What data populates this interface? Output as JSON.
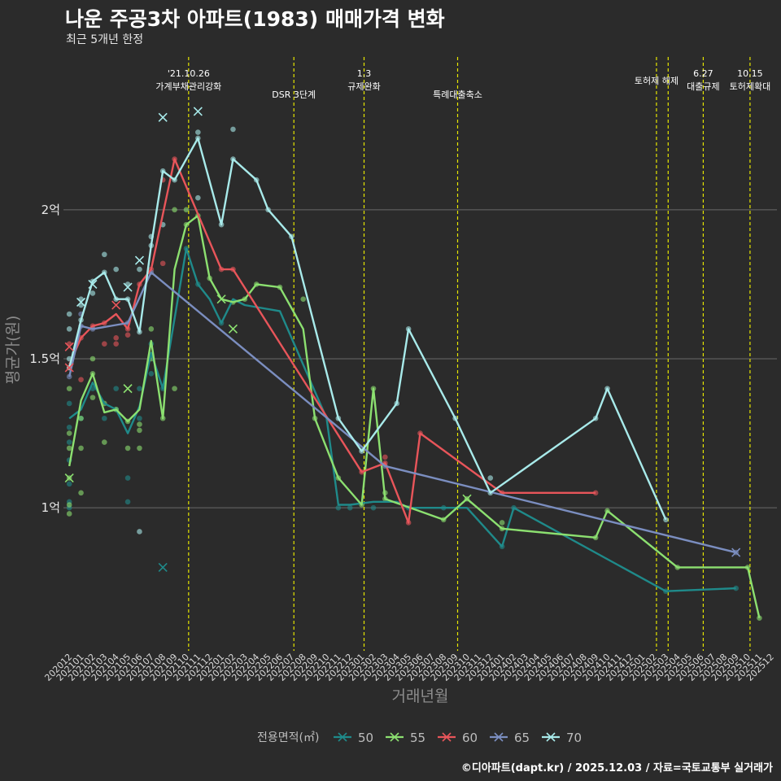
{
  "title": "나운 주공3차 아파트(1983) 매매가격 변화",
  "subtitle": "최근 5개년 한정",
  "caption": "©디아파트(dapt.kr) / 2025.12.03 / 자료=국토교통부 실거래가",
  "chart_data": {
    "type": "line",
    "xlabel": "거래년월",
    "ylabel": "평균가(원)",
    "ylim": [
      0.52,
      2.54
    ],
    "y_unit": "억",
    "yticks": [
      {
        "value": 1,
        "label": "1억"
      },
      {
        "value": 1.5,
        "label": "1.5억"
      },
      {
        "value": 2,
        "label": "2억"
      }
    ],
    "x_categories": [
      "202012",
      "202101",
      "202102",
      "202103",
      "202104",
      "202105",
      "202106",
      "202107",
      "202108",
      "202109",
      "202110",
      "202111",
      "202112",
      "202201",
      "202202",
      "202203",
      "202204",
      "202205",
      "202206",
      "202207",
      "202208",
      "202209",
      "202210",
      "202211",
      "202212",
      "202301",
      "202302",
      "202303",
      "202304",
      "202305",
      "202306",
      "202307",
      "202308",
      "202309",
      "202310",
      "202311",
      "202312",
      "202401",
      "202402",
      "202403",
      "202404",
      "202405",
      "202406",
      "202407",
      "202408",
      "202409",
      "202410",
      "202411",
      "202412",
      "202501",
      "202502",
      "202503",
      "202504",
      "202505",
      "202506",
      "202507",
      "202508",
      "202509",
      "202510",
      "202511",
      "202512"
    ],
    "annotations": [
      {
        "x": 10.2,
        "lines": [
          "'21.10.26",
          "가계부채관리강화"
        ]
      },
      {
        "x": 19.2,
        "lines": [
          "DSR 3단계"
        ]
      },
      {
        "x": 25.2,
        "lines": [
          "1.3",
          "규제완화"
        ]
      },
      {
        "x": 33.2,
        "lines": [
          "특례대출축소"
        ]
      },
      {
        "x": 50.2,
        "lines": [
          "토허제 해제"
        ]
      },
      {
        "x": 51.2,
        "lines": []
      },
      {
        "x": 54.2,
        "lines": [
          "6.27",
          "대출규제"
        ]
      },
      {
        "x": 58.2,
        "lines": [
          "10.15",
          "토허제확대"
        ]
      }
    ],
    "legend_title": "전용면적(㎡)",
    "series": [
      {
        "name": "50",
        "color": "#1f8a8a",
        "points": [
          [
            0,
            1.3
          ],
          [
            1,
            1.33
          ],
          [
            2,
            1.42
          ],
          [
            3,
            1.35
          ],
          [
            4,
            1.33
          ],
          [
            5,
            1.25
          ],
          [
            6,
            1.34
          ],
          [
            7,
            1.52
          ],
          [
            8,
            1.4
          ],
          [
            10,
            1.87
          ],
          [
            11,
            1.75
          ],
          [
            12,
            1.7
          ],
          [
            13,
            1.62
          ],
          [
            14,
            1.7
          ],
          [
            15,
            1.68
          ],
          [
            18,
            1.66
          ],
          [
            22,
            1.3
          ],
          [
            23,
            1.01
          ],
          [
            24,
            1.01
          ],
          [
            26,
            1.02
          ],
          [
            28,
            1.02
          ],
          [
            29,
            1.0
          ],
          [
            32,
            1.0
          ],
          [
            34,
            1.0
          ],
          [
            37,
            0.87
          ],
          [
            38,
            1.0
          ],
          [
            51,
            0.72
          ],
          [
            57,
            0.73
          ]
        ]
      },
      {
        "name": "55",
        "color": "#8ce070",
        "points": [
          [
            0,
            1.14
          ],
          [
            1,
            1.36
          ],
          [
            2,
            1.45
          ],
          [
            3,
            1.32
          ],
          [
            4,
            1.33
          ],
          [
            5,
            1.29
          ],
          [
            6,
            1.33
          ],
          [
            7,
            1.56
          ],
          [
            8,
            1.3
          ],
          [
            9,
            1.8
          ],
          [
            10,
            1.95
          ],
          [
            11,
            1.98
          ],
          [
            12,
            1.77
          ],
          [
            13,
            1.7
          ],
          [
            14,
            1.69
          ],
          [
            15,
            1.7
          ],
          [
            16,
            1.75
          ],
          [
            18,
            1.74
          ],
          [
            20,
            1.6
          ],
          [
            21,
            1.3
          ],
          [
            23,
            1.1
          ],
          [
            25,
            1.01
          ],
          [
            26,
            1.4
          ],
          [
            27,
            1.03
          ],
          [
            32,
            0.96
          ],
          [
            34,
            1.03
          ],
          [
            37,
            0.93
          ],
          [
            45,
            0.9
          ],
          [
            46,
            0.99
          ],
          [
            52,
            0.8
          ],
          [
            58,
            0.8
          ],
          [
            59,
            0.63
          ]
        ]
      },
      {
        "name": "60",
        "color": "#e8555a",
        "points": [
          [
            0,
            1.48
          ],
          [
            1,
            1.57
          ],
          [
            2,
            1.61
          ],
          [
            3,
            1.62
          ],
          [
            4,
            1.65
          ],
          [
            5,
            1.6
          ],
          [
            6,
            1.75
          ],
          [
            7,
            1.8
          ],
          [
            9,
            2.17
          ],
          [
            13,
            1.8
          ],
          [
            14,
            1.8
          ],
          [
            25,
            1.12
          ],
          [
            27,
            1.15
          ],
          [
            29,
            0.95
          ],
          [
            30,
            1.25
          ],
          [
            37,
            1.05
          ],
          [
            45,
            1.05
          ]
        ]
      },
      {
        "name": "65",
        "color": "#7b8ec0",
        "points": [
          [
            0,
            1.44
          ],
          [
            1,
            1.61
          ],
          [
            2,
            1.6
          ],
          [
            5,
            1.62
          ],
          [
            7,
            1.79
          ],
          [
            27,
            1.14
          ],
          [
            57,
            0.85
          ]
        ]
      },
      {
        "name": "70",
        "color": "#a8eaea",
        "points": [
          [
            0,
            1.47
          ],
          [
            1,
            1.63
          ],
          [
            2,
            1.76
          ],
          [
            3,
            1.79
          ],
          [
            4,
            1.7
          ],
          [
            5,
            1.7
          ],
          [
            6,
            1.59
          ],
          [
            7,
            1.88
          ],
          [
            8,
            2.13
          ],
          [
            9,
            2.1
          ],
          [
            11,
            2.24
          ],
          [
            13,
            1.95
          ],
          [
            14,
            2.17
          ],
          [
            16,
            2.1
          ],
          [
            17,
            2.0
          ],
          [
            19,
            1.91
          ],
          [
            23,
            1.3
          ],
          [
            25,
            1.19
          ],
          [
            28,
            1.35
          ],
          [
            29,
            1.6
          ],
          [
            33,
            1.3
          ],
          [
            36,
            1.05
          ],
          [
            45,
            1.3
          ],
          [
            46,
            1.4
          ],
          [
            51,
            0.96
          ]
        ]
      }
    ],
    "scatter": [
      {
        "series": "50",
        "points": [
          [
            0,
            1.0
          ],
          [
            0,
            1.02
          ],
          [
            0,
            1.08
          ],
          [
            0,
            1.16
          ],
          [
            0,
            1.22
          ],
          [
            0,
            1.27
          ],
          [
            0,
            1.35
          ],
          [
            1,
            1.3
          ],
          [
            2,
            1.4
          ],
          [
            3,
            1.3
          ],
          [
            4,
            1.33
          ],
          [
            4,
            1.4
          ],
          [
            5,
            1.02
          ],
          [
            5,
            1.1
          ],
          [
            6,
            1.3
          ],
          [
            6,
            1.4
          ],
          [
            7,
            1.45
          ],
          [
            7,
            1.55
          ],
          [
            8,
            1.4
          ],
          [
            10,
            1.87
          ],
          [
            11,
            1.75
          ],
          [
            13,
            1.62
          ],
          [
            23,
            1.0
          ],
          [
            24,
            1.0
          ],
          [
            26,
            1.0
          ],
          [
            29,
            1.0
          ],
          [
            32,
            1.0
          ],
          [
            37,
            0.87
          ],
          [
            38,
            1.0
          ],
          [
            51,
            0.72
          ],
          [
            57,
            0.73
          ]
        ]
      },
      {
        "series": "55",
        "points": [
          [
            0,
            0.98
          ],
          [
            0,
            1.01
          ],
          [
            0,
            1.1
          ],
          [
            0,
            1.2
          ],
          [
            0,
            1.25
          ],
          [
            0,
            1.4
          ],
          [
            1,
            1.05
          ],
          [
            1,
            1.2
          ],
          [
            1,
            1.3
          ],
          [
            2,
            1.37
          ],
          [
            2,
            1.45
          ],
          [
            2,
            1.5
          ],
          [
            3,
            1.22
          ],
          [
            3,
            1.35
          ],
          [
            4,
            1.33
          ],
          [
            5,
            1.2
          ],
          [
            5,
            1.29
          ],
          [
            6,
            1.2
          ],
          [
            6,
            1.26
          ],
          [
            6,
            1.28
          ],
          [
            7,
            1.5
          ],
          [
            7,
            1.6
          ],
          [
            8,
            1.3
          ],
          [
            9,
            1.4
          ],
          [
            9,
            2.0
          ],
          [
            10,
            1.95
          ],
          [
            10,
            2.0
          ],
          [
            11,
            1.98
          ],
          [
            12,
            1.77
          ],
          [
            14,
            1.69
          ],
          [
            15,
            1.7
          ],
          [
            16,
            1.75
          ],
          [
            18,
            1.74
          ],
          [
            20,
            1.7
          ],
          [
            21,
            1.3
          ],
          [
            23,
            1.1
          ],
          [
            25,
            1.01
          ],
          [
            26,
            1.4
          ],
          [
            27,
            1.03
          ],
          [
            27,
            1.05
          ],
          [
            32,
            0.96
          ],
          [
            34,
            1.03
          ],
          [
            37,
            0.93
          ],
          [
            37,
            0.95
          ],
          [
            45,
            0.9
          ],
          [
            46,
            0.99
          ],
          [
            52,
            0.8
          ],
          [
            58,
            0.8
          ],
          [
            59,
            0.63
          ]
        ]
      },
      {
        "series": "60",
        "points": [
          [
            0,
            1.47
          ],
          [
            0,
            1.55
          ],
          [
            1,
            1.43
          ],
          [
            1,
            1.57
          ],
          [
            2,
            1.61
          ],
          [
            3,
            1.55
          ],
          [
            3,
            1.62
          ],
          [
            4,
            1.55
          ],
          [
            4,
            1.57
          ],
          [
            5,
            1.58
          ],
          [
            5,
            1.6
          ],
          [
            6,
            1.75
          ],
          [
            7,
            1.8
          ],
          [
            8,
            1.82
          ],
          [
            8,
            2.1
          ],
          [
            9,
            2.17
          ],
          [
            13,
            1.8
          ],
          [
            14,
            1.8
          ],
          [
            25,
            1.12
          ],
          [
            27,
            1.15
          ],
          [
            27,
            1.17
          ],
          [
            29,
            0.95
          ],
          [
            30,
            1.25
          ],
          [
            37,
            1.05
          ],
          [
            45,
            1.05
          ]
        ]
      },
      {
        "series": "65",
        "points": [
          [
            0,
            1.44
          ],
          [
            1,
            1.61
          ],
          [
            1,
            1.65
          ],
          [
            2,
            1.6
          ],
          [
            5,
            1.62
          ],
          [
            7,
            1.79
          ],
          [
            27,
            1.14
          ],
          [
            57,
            0.85
          ]
        ]
      },
      {
        "series": "70",
        "points": [
          [
            0,
            1.47
          ],
          [
            0,
            1.5
          ],
          [
            0,
            1.6
          ],
          [
            0,
            1.65
          ],
          [
            1,
            1.63
          ],
          [
            1,
            1.68
          ],
          [
            1,
            1.7
          ],
          [
            2,
            1.72
          ],
          [
            2,
            1.76
          ],
          [
            3,
            1.79
          ],
          [
            3,
            1.85
          ],
          [
            4,
            1.7
          ],
          [
            4,
            1.8
          ],
          [
            5,
            1.7
          ],
          [
            5,
            1.75
          ],
          [
            6,
            0.92
          ],
          [
            6,
            1.59
          ],
          [
            6,
            1.8
          ],
          [
            7,
            1.88
          ],
          [
            7,
            1.91
          ],
          [
            8,
            1.95
          ],
          [
            8,
            2.13
          ],
          [
            9,
            2.1
          ],
          [
            11,
            2.04
          ],
          [
            11,
            2.24
          ],
          [
            11,
            2.26
          ],
          [
            13,
            1.95
          ],
          [
            14,
            2.17
          ],
          [
            14,
            2.27
          ],
          [
            16,
            2.1
          ],
          [
            17,
            2.0
          ],
          [
            19,
            1.91
          ],
          [
            23,
            1.3
          ],
          [
            25,
            1.19
          ],
          [
            28,
            1.35
          ],
          [
            29,
            1.6
          ],
          [
            33,
            1.3
          ],
          [
            36,
            1.05
          ],
          [
            36,
            1.1
          ],
          [
            45,
            1.3
          ],
          [
            46,
            1.4
          ],
          [
            51,
            0.96
          ]
        ]
      }
    ],
    "crosses": [
      {
        "series": "50",
        "points": [
          [
            8,
            0.8
          ]
        ]
      },
      {
        "series": "55",
        "points": [
          [
            0,
            1.1
          ],
          [
            5,
            1.4
          ],
          [
            13,
            1.7
          ],
          [
            14,
            1.6
          ],
          [
            34,
            1.03
          ]
        ]
      },
      {
        "series": "60",
        "points": [
          [
            0,
            1.54
          ],
          [
            0,
            1.47
          ],
          [
            4,
            1.68
          ]
        ]
      },
      {
        "series": "65",
        "points": [
          [
            57,
            0.85
          ]
        ]
      },
      {
        "series": "70",
        "points": [
          [
            1,
            1.69
          ],
          [
            2,
            1.75
          ],
          [
            5,
            1.74
          ],
          [
            6,
            1.83
          ],
          [
            8,
            2.31
          ],
          [
            11,
            2.33
          ]
        ]
      }
    ]
  }
}
